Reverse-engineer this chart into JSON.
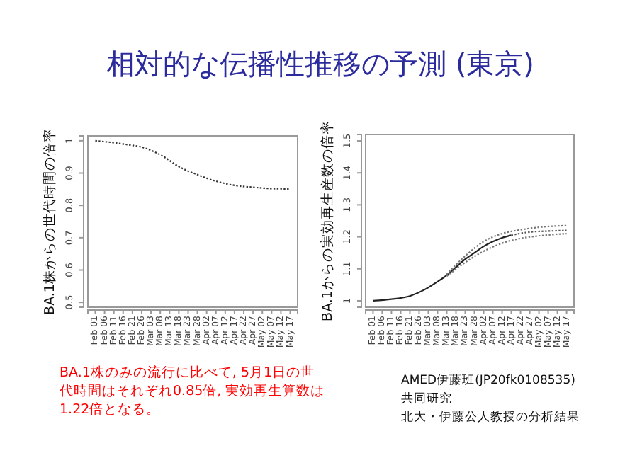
{
  "chart_data": [
    {
      "type": "line",
      "title": "相対的な伝播性推移の予測 (東京)",
      "ylabel": "BA.1株からの世代時間の倍率",
      "xlim": [
        "--01-28",
        "--05-21"
      ],
      "ylim": [
        0.485,
        1.015
      ],
      "yticks": [
        0.5,
        0.6,
        0.7,
        0.8,
        0.9,
        1.0
      ],
      "xticks": [
        {
          "value": "--02-01",
          "label": "Feb 01"
        },
        {
          "value": "--02-06",
          "label": "Feb 06"
        },
        {
          "value": "--02-11",
          "label": "Feb 11"
        },
        {
          "value": "--02-16",
          "label": "Feb 16"
        },
        {
          "value": "--02-21",
          "label": "Feb 21"
        },
        {
          "value": "--02-26",
          "label": "Feb 26"
        },
        {
          "value": "--03-03",
          "label": "Mar 03"
        },
        {
          "value": "--03-08",
          "label": "Mar 08"
        },
        {
          "value": "--03-13",
          "label": "Mar 13"
        },
        {
          "value": "--03-18",
          "label": "Mar 18"
        },
        {
          "value": "--03-23",
          "label": "Mar 23"
        },
        {
          "value": "--03-28",
          "label": "Mar 28"
        },
        {
          "value": "--04-02",
          "label": "Apr 02"
        },
        {
          "value": "--04-07",
          "label": "Apr 07"
        },
        {
          "value": "--04-12",
          "label": "Apr 12"
        },
        {
          "value": "--04-17",
          "label": "Apr 17"
        },
        {
          "value": "--04-22",
          "label": "Apr 22"
        },
        {
          "value": "--04-27",
          "label": "Apr 27"
        },
        {
          "value": "--05-02",
          "label": "May 02"
        },
        {
          "value": "--05-07",
          "label": "May 07"
        },
        {
          "value": "--05-12",
          "label": "May 12"
        },
        {
          "value": "--05-17",
          "label": "May 17"
        }
      ],
      "series": [
        {
          "color": "#333333",
          "line_style": "dotted",
          "x": [
            "--02-01",
            "--02-16",
            "--03-01",
            "--03-10",
            "--03-18",
            "--03-28",
            "--04-07",
            "--04-17",
            "--04-27",
            "--05-07",
            "--05-17"
          ],
          "values": [
            1.0,
            0.99,
            0.975,
            0.95,
            0.92,
            0.895,
            0.875,
            0.862,
            0.856,
            0.852,
            0.851
          ]
        }
      ],
      "annotations": [
        "BA.1株のみの流行に比べて, 5月1日の世代時間はそれぞれ0.85倍, 実効再生算数は1.22倍となる。"
      ]
    },
    {
      "type": "line",
      "ylabel": "BA.1からの実効再生産数の倍率",
      "xlim": [
        "--01-28",
        "--05-21"
      ],
      "ylim": [
        0.98,
        1.52
      ],
      "yticks": [
        1.0,
        1.1,
        1.2,
        1.3,
        1.4,
        1.5
      ],
      "xticks": [
        {
          "value": "--02-01",
          "label": "Feb 01"
        },
        {
          "value": "--02-06",
          "label": "Feb 06"
        },
        {
          "value": "--02-11",
          "label": "Feb 11"
        },
        {
          "value": "--02-16",
          "label": "Feb 16"
        },
        {
          "value": "--02-21",
          "label": "Feb 21"
        },
        {
          "value": "--02-26",
          "label": "Feb 26"
        },
        {
          "value": "--03-03",
          "label": "Mar 03"
        },
        {
          "value": "--03-08",
          "label": "Mar 08"
        },
        {
          "value": "--03-13",
          "label": "Mar 13"
        },
        {
          "value": "--03-18",
          "label": "Mar 18"
        },
        {
          "value": "--03-23",
          "label": "Mar 23"
        },
        {
          "value": "--03-28",
          "label": "Mar 28"
        },
        {
          "value": "--04-02",
          "label": "Apr 02"
        },
        {
          "value": "--04-07",
          "label": "Apr 07"
        },
        {
          "value": "--04-12",
          "label": "Apr 12"
        },
        {
          "value": "--04-17",
          "label": "Apr 17"
        },
        {
          "value": "--04-22",
          "label": "Apr 22"
        },
        {
          "value": "--04-27",
          "label": "Apr 27"
        },
        {
          "value": "--05-02",
          "label": "May 02"
        },
        {
          "value": "--05-07",
          "label": "May 07"
        },
        {
          "value": "--05-12",
          "label": "May 12"
        },
        {
          "value": "--05-17",
          "label": "May 17"
        }
      ],
      "series": [
        {
          "color": "#222222",
          "line_style": "solid",
          "x": [
            "--02-01",
            "--02-11",
            "--02-21",
            "--03-01",
            "--03-08",
            "--03-13",
            "--03-18",
            "--03-23",
            "--03-28",
            "--04-02",
            "--04-07",
            "--04-12",
            "--04-17"
          ],
          "values": [
            1.0,
            1.005,
            1.015,
            1.035,
            1.06,
            1.08,
            1.105,
            1.13,
            1.15,
            1.17,
            1.185,
            1.197,
            1.205
          ]
        },
        {
          "color": "#555555",
          "line_style": "dotted",
          "x": [
            "--04-17",
            "--04-27",
            "--05-07",
            "--05-17"
          ],
          "values": [
            1.205,
            1.215,
            1.218,
            1.22
          ]
        },
        {
          "color": "#777777",
          "line_style": "dotted",
          "x": [
            "--03-13",
            "--03-23",
            "--04-02",
            "--04-12",
            "--04-22",
            "--05-02",
            "--05-17"
          ],
          "values": [
            1.083,
            1.14,
            1.185,
            1.21,
            1.222,
            1.23,
            1.235
          ]
        },
        {
          "color": "#777777",
          "line_style": "dotted",
          "x": [
            "--03-13",
            "--03-23",
            "--04-02",
            "--04-12",
            "--04-22",
            "--05-02",
            "--05-17"
          ],
          "values": [
            1.077,
            1.12,
            1.155,
            1.18,
            1.195,
            1.203,
            1.21
          ]
        }
      ],
      "annotations": [
        "AMED伊藤班(JP20fk0108535)",
        "共同研究",
        "北大・伊藤公人教授の分析結果"
      ]
    }
  ]
}
